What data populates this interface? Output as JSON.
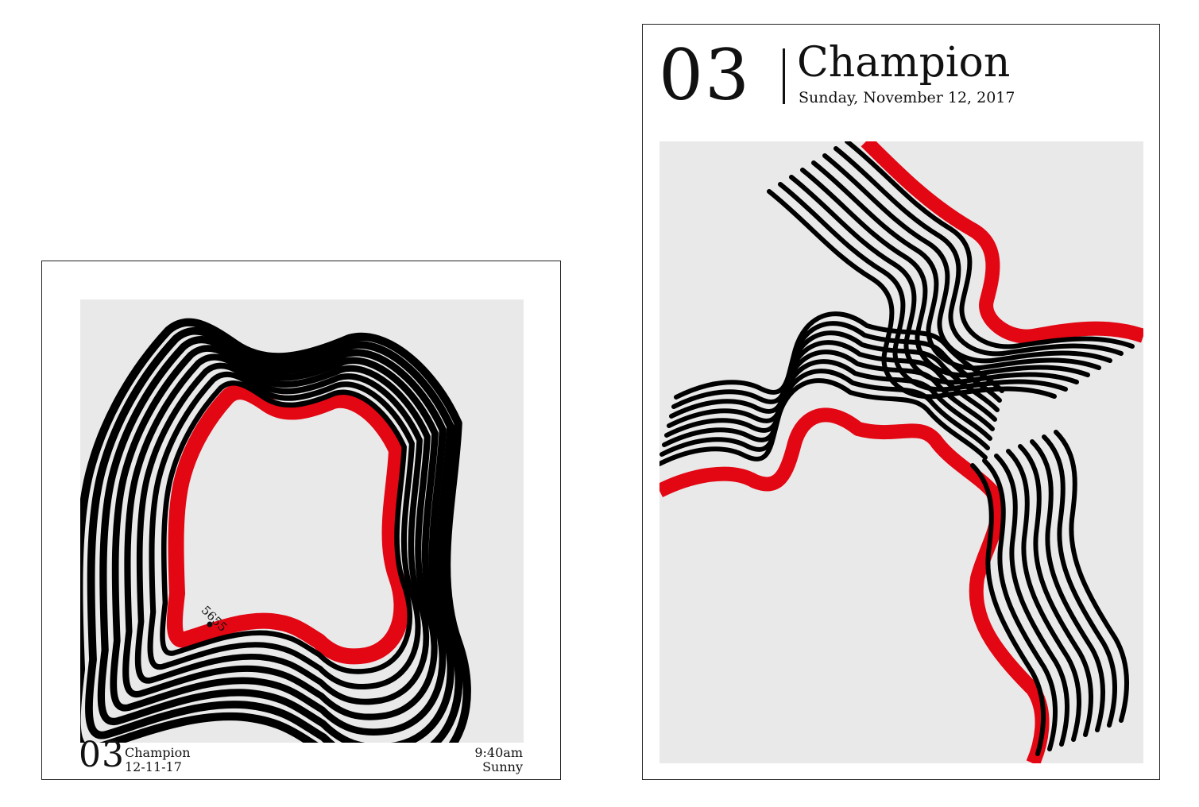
{
  "colors": {
    "accent": "#e30613",
    "ink": "#000000",
    "canvas": "#e9e9e9",
    "paper": "#ffffff"
  },
  "square_poster": {
    "number": "03",
    "name": "Champion",
    "date": "12-11-17",
    "time": "9:40am",
    "weather": "Sunny",
    "map_label": "5655"
  },
  "tall_poster": {
    "number": "03",
    "name": "Champion",
    "date": "Sunday, November 12, 2017"
  }
}
